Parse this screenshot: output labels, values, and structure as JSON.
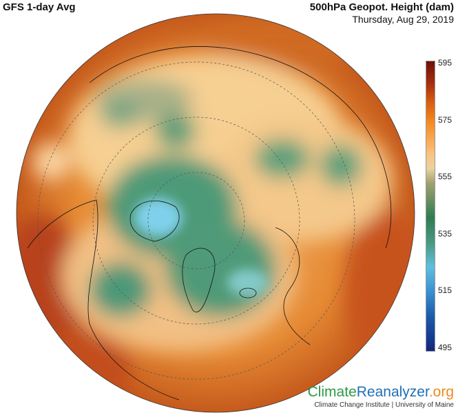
{
  "header": {
    "model": "GFS 1-day Avg",
    "variable": "500hPa Geopot. Height (dam)",
    "date": "Thursday, Aug 29, 2019"
  },
  "colorbar": {
    "ticks": [
      "595",
      "575",
      "555",
      "535",
      "515",
      "495"
    ],
    "range": [
      495,
      595
    ],
    "colors": {
      "high": "#6e0f0a",
      "mid_high": "#f58a1e",
      "mid": "#2f7c52",
      "mid_low": "#5fc0dc",
      "low": "#14267c"
    }
  },
  "map": {
    "projection": "orthographic north polar",
    "colors": {
      "warm": "#e07a28",
      "cream": "#f6cf92",
      "green": "#4f9a78",
      "lightblue": "#7fd0ea"
    }
  },
  "footer": {
    "logo_part1": "Climate",
    "logo_part2": "Reanalyzer",
    "logo_part3": ".org",
    "institution": "Climate Change Institute | University of Maine"
  }
}
